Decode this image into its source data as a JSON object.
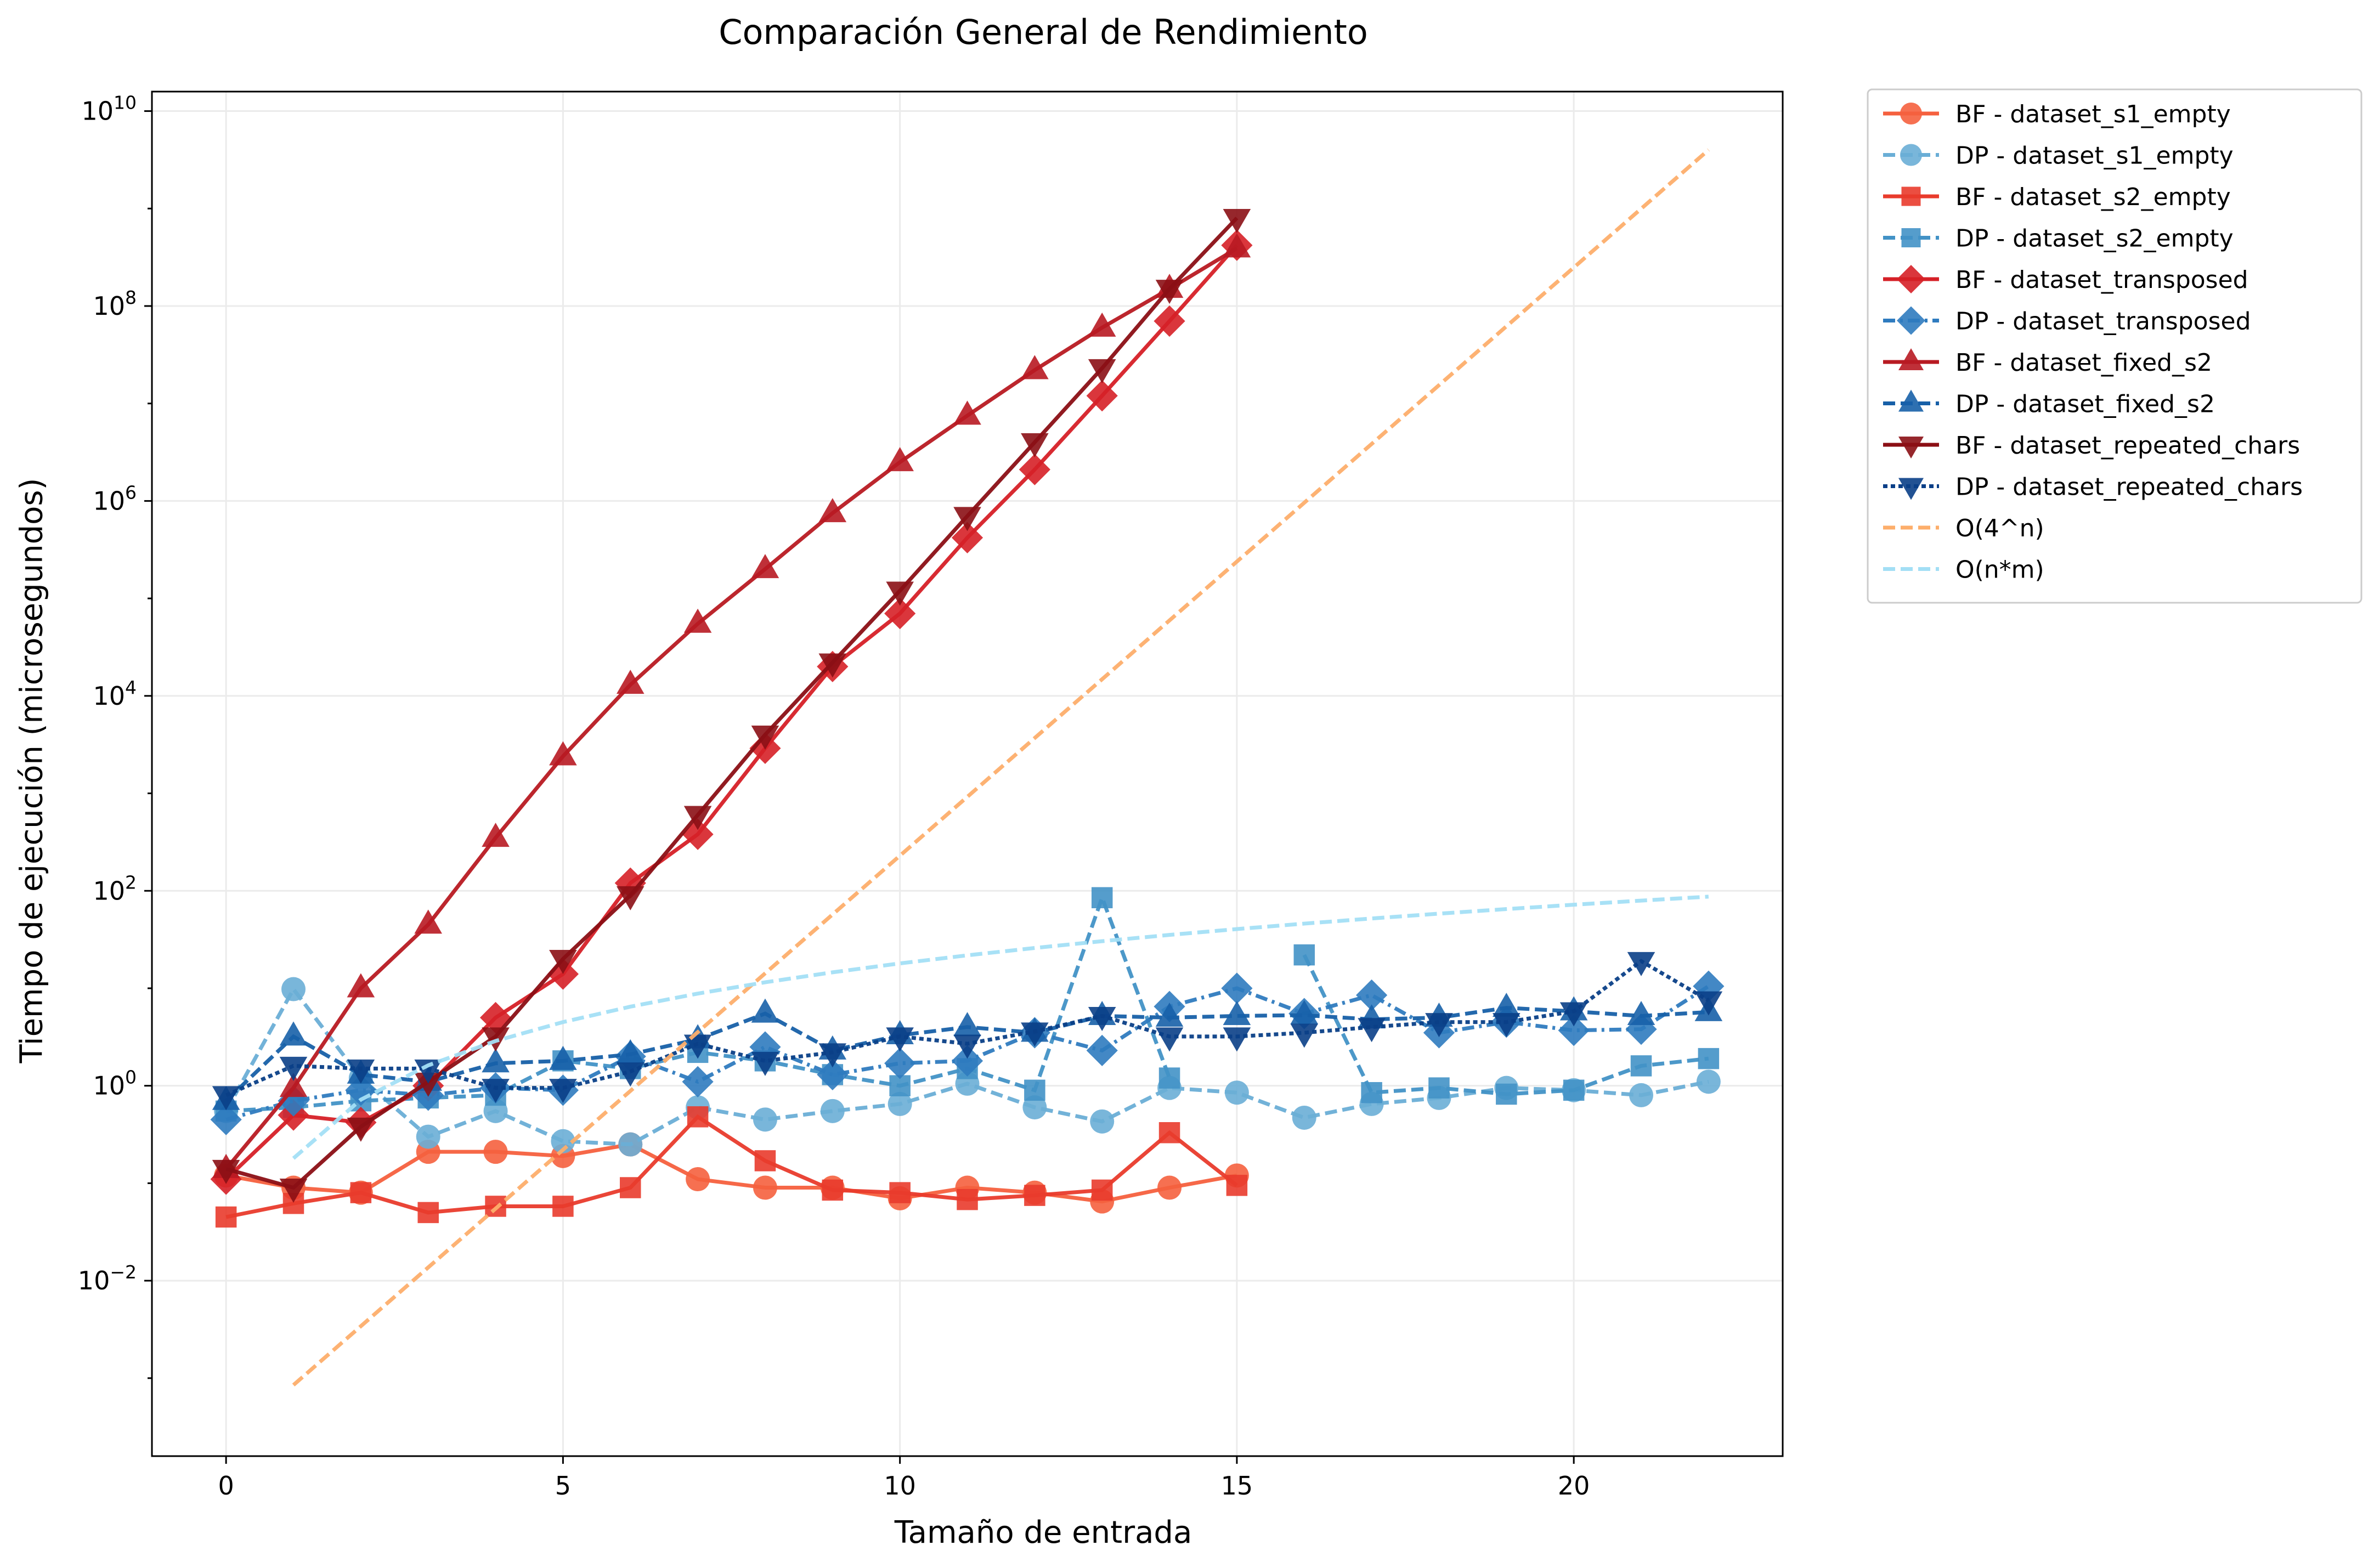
{
  "chart_data": {
    "type": "line",
    "title": "Comparación General de Rendimiento",
    "xlabel": "Tamaño de entrada",
    "ylabel": "Tiempo de ejecución (microsegundos)",
    "xlim": [
      -1.1,
      23.1
    ],
    "ylim_log10": [
      -3.8,
      10.2
    ],
    "yscale": "log",
    "grid": true,
    "legend_position": "outside-top-right",
    "x_ticks": [
      0,
      5,
      10,
      15,
      20
    ],
    "y_ticks_exponent": [
      -2,
      0,
      2,
      4,
      6,
      8,
      10
    ],
    "series": [
      {
        "name": "BF - dataset_s1_empty",
        "color": "#f5603e",
        "marker": "circle",
        "dash": "solid",
        "x": [
          0,
          1,
          2,
          3,
          4,
          5,
          6,
          7,
          8,
          9,
          10,
          11,
          12,
          13,
          14,
          15
        ],
        "y": [
          0.12,
          0.09,
          0.08,
          0.21,
          0.21,
          0.19,
          0.25,
          0.11,
          0.09,
          0.09,
          0.07,
          0.09,
          0.08,
          0.065,
          0.09,
          0.12
        ]
      },
      {
        "name": "DP - dataset_s1_empty",
        "color": "#6aaed6",
        "marker": "circle",
        "dash": "dashed",
        "x": [
          0,
          1,
          2,
          3,
          4,
          5,
          6,
          7,
          8,
          9,
          10,
          11,
          12,
          13,
          14,
          15,
          16,
          17,
          18,
          19,
          20,
          21,
          22
        ],
        "y": [
          0.55,
          9.8,
          1.2,
          0.3,
          0.55,
          0.27,
          0.25,
          0.6,
          0.45,
          0.55,
          0.65,
          1.05,
          0.6,
          0.43,
          0.95,
          0.85,
          0.47,
          0.65,
          0.75,
          0.95,
          0.9,
          0.8,
          1.1
        ]
      },
      {
        "name": "BF - dataset_s2_empty",
        "color": "#e93b2c",
        "marker": "square",
        "dash": "solid",
        "x": [
          0,
          1,
          2,
          3,
          4,
          5,
          6,
          7,
          8,
          9,
          10,
          11,
          12,
          13,
          14,
          15
        ],
        "y": [
          0.045,
          0.062,
          0.08,
          0.05,
          0.058,
          0.058,
          0.09,
          0.48,
          0.17,
          0.085,
          0.08,
          0.068,
          0.075,
          0.085,
          0.33,
          0.095
        ]
      },
      {
        "name": "DP - dataset_s2_empty",
        "color": "#4292c6",
        "marker": "square",
        "dash": "dashed",
        "x": [
          0,
          1,
          2,
          3,
          4,
          5,
          6,
          7,
          8,
          9,
          10,
          11,
          12,
          13,
          14,
          15,
          16,
          17,
          18,
          19,
          20,
          21,
          22
        ],
        "y": [
          0.55,
          0.6,
          0.7,
          0.75,
          0.8,
          1.8,
          1.5,
          2.2,
          1.8,
          1.3,
          1.0,
          1.5,
          0.9,
          85,
          1.2,
          null,
          22,
          0.85,
          0.95,
          0.82,
          0.9,
          1.6,
          1.9
        ]
      },
      {
        "name": "BF - dataset_transposed",
        "color": "#d62027",
        "marker": "diamond",
        "dash": "solid",
        "x": [
          0,
          1,
          2,
          3,
          4,
          5,
          6,
          7,
          8,
          9,
          10,
          11,
          12,
          13,
          14,
          15
        ],
        "y": [
          0.11,
          0.5,
          0.42,
          1.0,
          5.0,
          14,
          120,
          380,
          2900,
          20000,
          70000,
          420000,
          2100000,
          12000000,
          70000000,
          420000000
        ]
      },
      {
        "name": "DP - dataset_transposed",
        "color": "#2f7bbf",
        "marker": "diamond",
        "dash": "dashdot",
        "x": [
          0,
          1,
          2,
          3,
          4,
          5,
          6,
          7,
          8,
          9,
          10,
          11,
          12,
          13,
          14,
          15,
          16,
          17,
          18,
          19,
          20,
          21,
          22
        ],
        "y": [
          0.45,
          0.7,
          0.9,
          0.8,
          0.95,
          0.9,
          2.0,
          1.1,
          2.5,
          1.3,
          1.7,
          1.8,
          3.5,
          2.3,
          6.5,
          10,
          5.5,
          8.5,
          3.5,
          4.5,
          3.7,
          3.8,
          10.5
        ]
      },
      {
        "name": "BF - dataset_fixed_s2",
        "color": "#b81a22",
        "marker": "triangle-up",
        "dash": "solid",
        "x": [
          0,
          1,
          2,
          3,
          4,
          5,
          6,
          7,
          8,
          9,
          10,
          11,
          12,
          13,
          14,
          15
        ],
        "y": [
          0.14,
          0.95,
          10,
          45,
          350,
          2400,
          13000,
          55000,
          200000,
          750000,
          2500000,
          7500000,
          22000000,
          60000000,
          150000000,
          390000000
        ]
      },
      {
        "name": "DP - dataset_fixed_s2",
        "color": "#1760a8",
        "marker": "triangle-up",
        "dash": "dashed",
        "x": [
          0,
          1,
          2,
          3,
          4,
          5,
          6,
          7,
          8,
          9,
          10,
          11,
          12,
          13,
          14,
          15,
          16,
          17,
          18,
          19,
          20,
          21,
          22
        ],
        "y": [
          0.7,
          3.2,
          1.3,
          1.1,
          1.7,
          1.8,
          2.1,
          3.0,
          5.5,
          2.3,
          3.3,
          4.0,
          3.5,
          5.2,
          5.0,
          5.2,
          5.3,
          4.8,
          5.0,
          6.3,
          5.8,
          5.2,
          5.7
        ]
      },
      {
        "name": "BF - dataset_repeated_chars",
        "color": "#8b0f15",
        "marker": "triangle-down",
        "dash": "solid",
        "x": [
          0,
          1,
          2,
          3,
          4,
          5,
          6,
          7,
          8,
          9,
          10,
          11,
          12,
          13,
          14,
          15
        ],
        "y": [
          0.14,
          0.09,
          0.38,
          1.1,
          3.2,
          20,
          90,
          600,
          4000,
          22000,
          120000,
          700000,
          4000000,
          23000000,
          150000000,
          800000000
        ]
      },
      {
        "name": "DP - dataset_repeated_chars",
        "color": "#0a3f87",
        "marker": "triangle-down",
        "dash": "dotted",
        "x": [
          0,
          1,
          2,
          3,
          4,
          5,
          6,
          7,
          8,
          9,
          10,
          11,
          12,
          13,
          14,
          15,
          16,
          17,
          18,
          19,
          20,
          21,
          22
        ],
        "y": [
          0.8,
          1.6,
          1.5,
          1.5,
          0.95,
          0.95,
          1.4,
          2.7,
          1.8,
          2.2,
          3.2,
          2.7,
          3.6,
          5.2,
          3.2,
          3.2,
          3.5,
          4.0,
          4.5,
          4.5,
          5.8,
          19,
          7.5
        ]
      },
      {
        "name": "O(4^n)",
        "color": "#fdae6b",
        "marker": "none",
        "dash": "dashed",
        "x": [
          1,
          22
        ],
        "y": [
          0.00085,
          4000000000
        ]
      },
      {
        "name": "O(n*m)",
        "color": "#a3dff5",
        "marker": "none",
        "dash": "dashed",
        "x": [
          1,
          2,
          3,
          4,
          5,
          6,
          7,
          8,
          9,
          10,
          11,
          12,
          13,
          14,
          15,
          16,
          17,
          18,
          19,
          20,
          21,
          22
        ],
        "y": [
          0.18,
          0.72,
          1.62,
          2.88,
          4.5,
          6.48,
          8.82,
          11.52,
          14.58,
          18.0,
          21.78,
          25.92,
          30.42,
          35.28,
          40.5,
          46.08,
          52.02,
          58.32,
          64.98,
          72.0,
          79.38,
          87.12
        ]
      }
    ]
  }
}
